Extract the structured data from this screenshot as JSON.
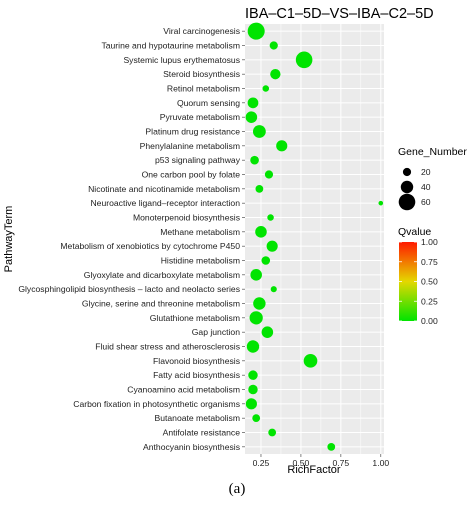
{
  "chart_data": {
    "type": "scatter",
    "title": "IBA–C1–5D–VS–IBA–C2–5D",
    "xlabel": "RichFactor",
    "ylabel": "PathwayTerm",
    "xlim": [
      0.15,
      1.02
    ],
    "xticks": [
      0.25,
      0.5,
      0.75,
      1.0
    ],
    "xtick_labels": [
      "0.25",
      "0.50",
      "0.75",
      "1.00"
    ],
    "grid": true,
    "categories": [
      "Viral carcinogenesis",
      "Taurine and hypotaurine metabolism",
      "Systemic lupus erythematosus",
      "Steroid biosynthesis",
      "Retinol metabolism",
      "Quorum sensing",
      "Pyruvate metabolism",
      "Platinum drug resistance",
      "Phenylalanine metabolism",
      "p53 signaling pathway",
      "One carbon pool by folate",
      "Nicotinate and nicotinamide metabolism",
      "Neuroactive ligand–receptor interaction",
      "Monoterpenoid biosynthesis",
      "Methane metabolism",
      "Metabolism of xenobiotics by cytochrome P450",
      "Histidine metabolism",
      "Glyoxylate and dicarboxylate metabolism",
      "Glycosphingolipid biosynthesis – lacto and neolacto series",
      "Glycine, serine and threonine metabolism",
      "Glutathione metabolism",
      "Gap junction",
      "Fluid shear stress and atherosclerosis",
      "Flavonoid biosynthesis",
      "Fatty acid biosynthesis",
      "Cyanoamino acid metabolism",
      "Carbon fixation in photosynthetic organisms",
      "Butanoate metabolism",
      "Antifolate resistance",
      "Anthocyanin biosynthesis"
    ],
    "points": [
      {
        "term": "Viral carcinogenesis",
        "rich_factor": 0.22,
        "gene_number": 62,
        "qvalue": 0.0
      },
      {
        "term": "Taurine and hypotaurine metabolism",
        "rich_factor": 0.33,
        "gene_number": 20,
        "qvalue": 0.0
      },
      {
        "term": "Systemic lupus erythematosus",
        "rich_factor": 0.52,
        "gene_number": 60,
        "qvalue": 0.0
      },
      {
        "term": "Steroid biosynthesis",
        "rich_factor": 0.34,
        "gene_number": 30,
        "qvalue": 0.0
      },
      {
        "term": "Retinol metabolism",
        "rich_factor": 0.28,
        "gene_number": 12,
        "qvalue": 0.0
      },
      {
        "term": "Quorum sensing",
        "rich_factor": 0.2,
        "gene_number": 32,
        "qvalue": 0.0
      },
      {
        "term": "Pyruvate metabolism",
        "rich_factor": 0.19,
        "gene_number": 36,
        "qvalue": 0.0
      },
      {
        "term": "Platinum drug resistance",
        "rich_factor": 0.24,
        "gene_number": 42,
        "qvalue": 0.0
      },
      {
        "term": "Phenylalanine metabolism",
        "rich_factor": 0.38,
        "gene_number": 34,
        "qvalue": 0.0
      },
      {
        "term": "p53 signaling pathway",
        "rich_factor": 0.21,
        "gene_number": 22,
        "qvalue": 0.0
      },
      {
        "term": "One carbon pool by folate",
        "rich_factor": 0.3,
        "gene_number": 20,
        "qvalue": 0.0
      },
      {
        "term": "Nicotinate and nicotinamide metabolism",
        "rich_factor": 0.24,
        "gene_number": 18,
        "qvalue": 0.0
      },
      {
        "term": "Neuroactive ligand–receptor interaction",
        "rich_factor": 1.0,
        "gene_number": 3,
        "qvalue": 0.0
      },
      {
        "term": "Monoterpenoid biosynthesis",
        "rich_factor": 0.31,
        "gene_number": 12,
        "qvalue": 0.0
      },
      {
        "term": "Methane metabolism",
        "rich_factor": 0.25,
        "gene_number": 36,
        "qvalue": 0.0
      },
      {
        "term": "Metabolism of xenobiotics by cytochrome P450",
        "rich_factor": 0.32,
        "gene_number": 34,
        "qvalue": 0.0
      },
      {
        "term": "Histidine metabolism",
        "rich_factor": 0.28,
        "gene_number": 22,
        "qvalue": 0.0
      },
      {
        "term": "Glyoxylate and dicarboxylate metabolism",
        "rich_factor": 0.22,
        "gene_number": 36,
        "qvalue": 0.0
      },
      {
        "term": "Glycosphingolipid biosynthesis – lacto and neolacto series",
        "rich_factor": 0.33,
        "gene_number": 10,
        "qvalue": 0.0
      },
      {
        "term": "Glycine, serine and threonine metabolism",
        "rich_factor": 0.24,
        "gene_number": 40,
        "qvalue": 0.0
      },
      {
        "term": "Glutathione metabolism",
        "rich_factor": 0.22,
        "gene_number": 44,
        "qvalue": 0.0
      },
      {
        "term": "Gap junction",
        "rich_factor": 0.29,
        "gene_number": 36,
        "qvalue": 0.0
      },
      {
        "term": "Fluid shear stress and atherosclerosis",
        "rich_factor": 0.2,
        "gene_number": 40,
        "qvalue": 0.0
      },
      {
        "term": "Flavonoid biosynthesis",
        "rich_factor": 0.56,
        "gene_number": 46,
        "qvalue": 0.0
      },
      {
        "term": "Fatty acid biosynthesis",
        "rich_factor": 0.2,
        "gene_number": 26,
        "qvalue": 0.0
      },
      {
        "term": "Cyanoamino acid metabolism",
        "rich_factor": 0.2,
        "gene_number": 26,
        "qvalue": 0.0
      },
      {
        "term": "Carbon fixation in photosynthetic organisms",
        "rich_factor": 0.19,
        "gene_number": 34,
        "qvalue": 0.0
      },
      {
        "term": "Butanoate metabolism",
        "rich_factor": 0.22,
        "gene_number": 18,
        "qvalue": 0.0
      },
      {
        "term": "Antifolate resistance",
        "rich_factor": 0.32,
        "gene_number": 18,
        "qvalue": 0.0
      },
      {
        "term": "Anthocyanin biosynthesis",
        "rich_factor": 0.69,
        "gene_number": 18,
        "qvalue": 0.0
      }
    ],
    "size_legend": {
      "title": "Gene_Number",
      "values": [
        20,
        40,
        60
      ],
      "labels": [
        "20",
        "40",
        "60"
      ]
    },
    "color_legend": {
      "title": "Qvalue",
      "range": [
        0.0,
        1.0
      ],
      "ticks": [
        1.0,
        0.75,
        0.5,
        0.25,
        0.0
      ],
      "tick_labels": [
        "1.00",
        "0.75",
        "0.50",
        "0.25",
        "0.00"
      ],
      "low_color": "#00e400",
      "mid_color": "#e4d800",
      "high_color": "#ff1a00"
    },
    "panel_background": "#ebebeb",
    "grid_color": "#ffffff",
    "label": "(a)"
  }
}
